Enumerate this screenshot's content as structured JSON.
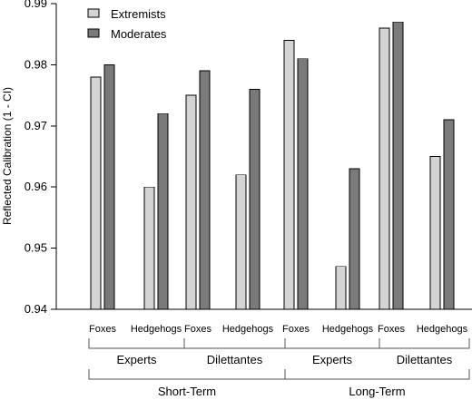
{
  "chart_data": {
    "type": "bar",
    "ylabel": "Reflected Calibration (1 - CI)",
    "ylim": [
      0.94,
      0.99
    ],
    "yticks": [
      0.94,
      0.95,
      0.96,
      0.97,
      0.98,
      0.99
    ],
    "ytick_labels": [
      "0.94",
      "0.95",
      "0.96",
      "0.97",
      "0.98",
      "0.99"
    ],
    "categories": [
      "Foxes",
      "Hedgehogs",
      "Foxes",
      "Hedgehogs",
      "Foxes",
      "Hedgehogs",
      "Foxes",
      "Hedgehogs"
    ],
    "series": [
      {
        "name": "Extremists",
        "color": "#d4d4d4",
        "values": [
          0.978,
          0.96,
          0.975,
          0.962,
          0.984,
          0.947,
          0.986,
          0.965
        ]
      },
      {
        "name": "Moderates",
        "color": "#7a7a7a",
        "values": [
          0.98,
          0.972,
          0.979,
          0.976,
          0.981,
          0.963,
          0.987,
          0.971
        ]
      }
    ],
    "groups_level1": [
      "Experts",
      "Dilettantes",
      "Experts",
      "Dilettantes"
    ],
    "groups_level2": [
      "Short-Term",
      "Long-Term"
    ],
    "legend_position": "top-left",
    "grid": false
  }
}
